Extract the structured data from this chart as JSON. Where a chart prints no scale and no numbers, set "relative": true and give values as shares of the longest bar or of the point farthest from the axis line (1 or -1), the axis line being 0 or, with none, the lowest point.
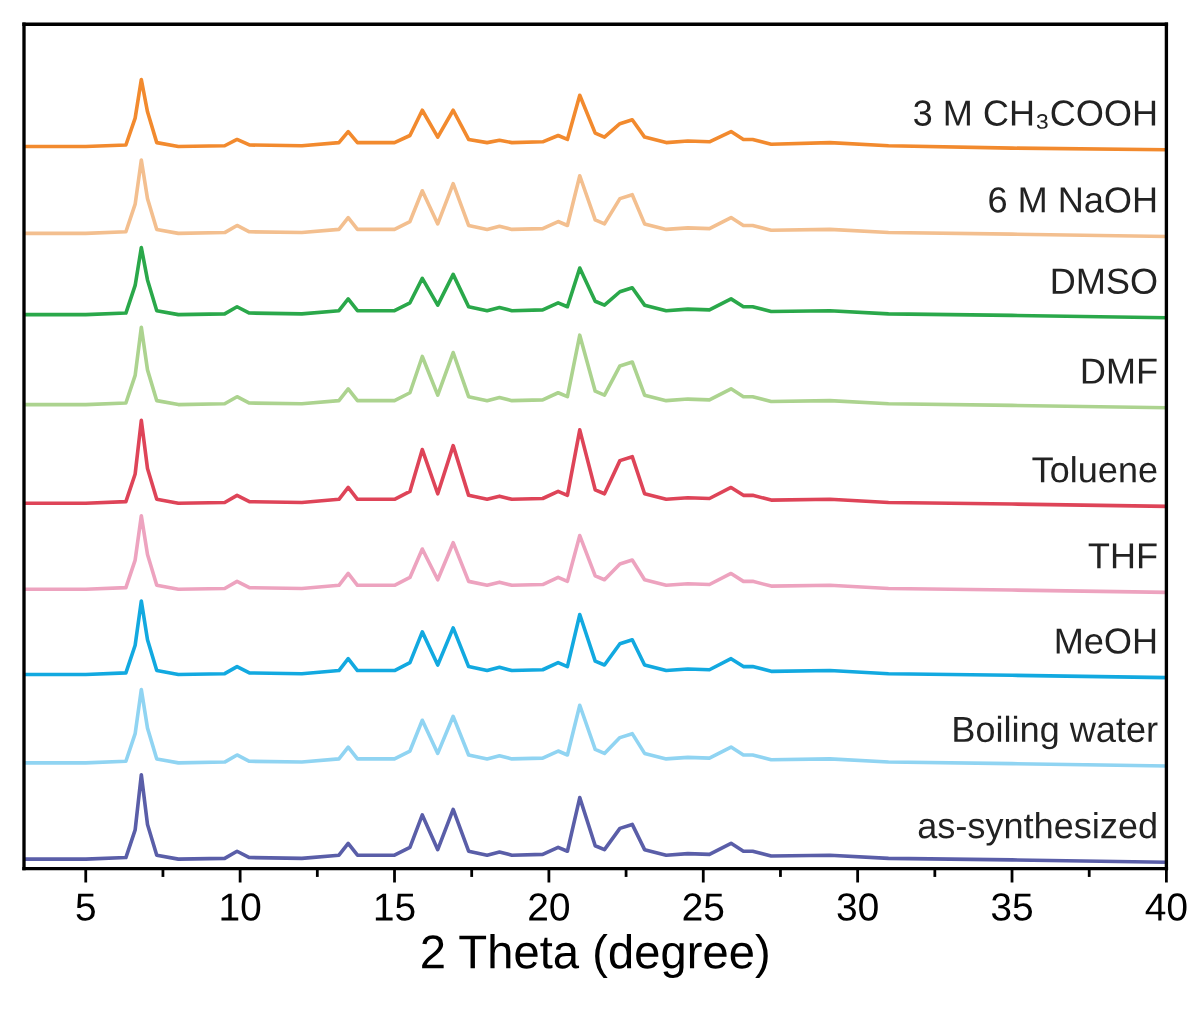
{
  "chart_data": {
    "type": "line",
    "relative": true,
    "xlabel": "2 Theta (degree)",
    "xlim": [
      3,
      40
    ],
    "xticks": [
      5,
      10,
      15,
      20,
      25,
      30,
      35,
      40
    ],
    "grid": false,
    "legend": false,
    "marker": "none",
    "line_style": "solid",
    "x": [
      3,
      5,
      6.3,
      6.6,
      6.8,
      7.0,
      7.3,
      8,
      9.5,
      9.9,
      10.3,
      12,
      13.2,
      13.5,
      13.8,
      15,
      15.5,
      15.9,
      16.4,
      16.9,
      17.4,
      18.0,
      18.4,
      18.8,
      19.8,
      20.3,
      20.6,
      21.0,
      21.5,
      21.8,
      22.3,
      22.7,
      23.1,
      23.8,
      24.5,
      25.2,
      25.9,
      26.3,
      26.6,
      27.2,
      29.1,
      31,
      35,
      40
    ],
    "series": [
      {
        "name": "3 M CH₃COOH",
        "color": "#f28a2e",
        "values": [
          0.915,
          0.915,
          0.917,
          0.951,
          1,
          0.959,
          0.92,
          0.915,
          0.916,
          0.924,
          0.917,
          0.916,
          0.92,
          0.934,
          0.92,
          0.92,
          0.929,
          0.961,
          0.927,
          0.961,
          0.924,
          0.92,
          0.923,
          0.92,
          0.921,
          0.929,
          0.924,
          0.98,
          0.932,
          0.927,
          0.944,
          0.949,
          0.927,
          0.92,
          0.922,
          0.921,
          0.934,
          0.924,
          0.924,
          0.918,
          0.92,
          0.916,
          0.913,
          0.911
        ]
      },
      {
        "name": "6 M NaOH",
        "color": "#f3bf8f",
        "values": [
          0.805,
          0.805,
          0.807,
          0.842,
          0.898,
          0.849,
          0.81,
          0.805,
          0.806,
          0.815,
          0.807,
          0.806,
          0.81,
          0.825,
          0.81,
          0.81,
          0.82,
          0.859,
          0.817,
          0.868,
          0.815,
          0.81,
          0.814,
          0.81,
          0.811,
          0.82,
          0.815,
          0.878,
          0.822,
          0.817,
          0.849,
          0.854,
          0.817,
          0.81,
          0.812,
          0.811,
          0.825,
          0.815,
          0.815,
          0.809,
          0.81,
          0.806,
          0.804,
          0.801
        ]
      },
      {
        "name": "DMSO",
        "color": "#2aa84a",
        "values": [
          0.702,
          0.702,
          0.704,
          0.739,
          0.787,
          0.746,
          0.707,
          0.702,
          0.703,
          0.712,
          0.704,
          0.703,
          0.707,
          0.722,
          0.707,
          0.707,
          0.717,
          0.748,
          0.714,
          0.753,
          0.712,
          0.707,
          0.711,
          0.707,
          0.708,
          0.717,
          0.712,
          0.761,
          0.719,
          0.714,
          0.731,
          0.736,
          0.714,
          0.707,
          0.709,
          0.708,
          0.722,
          0.712,
          0.712,
          0.706,
          0.707,
          0.703,
          0.701,
          0.698
        ]
      },
      {
        "name": "DMF",
        "color": "#acd38f",
        "values": [
          0.588,
          0.588,
          0.59,
          0.625,
          0.686,
          0.632,
          0.593,
          0.588,
          0.589,
          0.598,
          0.59,
          0.589,
          0.593,
          0.608,
          0.593,
          0.593,
          0.603,
          0.649,
          0.6,
          0.654,
          0.598,
          0.593,
          0.597,
          0.593,
          0.594,
          0.603,
          0.598,
          0.676,
          0.605,
          0.6,
          0.637,
          0.642,
          0.6,
          0.593,
          0.595,
          0.594,
          0.608,
          0.598,
          0.598,
          0.592,
          0.593,
          0.589,
          0.587,
          0.584
        ]
      },
      {
        "name": "Toluene",
        "color": "#de4458",
        "values": [
          0.463,
          0.463,
          0.465,
          0.5,
          0.568,
          0.507,
          0.468,
          0.463,
          0.464,
          0.473,
          0.465,
          0.464,
          0.468,
          0.483,
          0.468,
          0.468,
          0.478,
          0.531,
          0.475,
          0.536,
          0.473,
          0.468,
          0.472,
          0.468,
          0.469,
          0.478,
          0.473,
          0.556,
          0.48,
          0.475,
          0.517,
          0.522,
          0.475,
          0.468,
          0.47,
          0.469,
          0.483,
          0.473,
          0.473,
          0.467,
          0.468,
          0.464,
          0.462,
          0.459
        ]
      },
      {
        "name": "THF",
        "color": "#eda3bf",
        "values": [
          0.354,
          0.354,
          0.356,
          0.391,
          0.447,
          0.398,
          0.359,
          0.354,
          0.355,
          0.364,
          0.356,
          0.355,
          0.359,
          0.374,
          0.359,
          0.359,
          0.369,
          0.405,
          0.366,
          0.413,
          0.364,
          0.359,
          0.363,
          0.359,
          0.36,
          0.369,
          0.364,
          0.422,
          0.371,
          0.366,
          0.386,
          0.391,
          0.366,
          0.359,
          0.361,
          0.36,
          0.374,
          0.364,
          0.364,
          0.358,
          0.359,
          0.355,
          0.353,
          0.35
        ]
      },
      {
        "name": "MeOH",
        "color": "#12a9e0",
        "values": [
          0.246,
          0.246,
          0.248,
          0.283,
          0.339,
          0.29,
          0.251,
          0.246,
          0.247,
          0.256,
          0.248,
          0.247,
          0.251,
          0.266,
          0.251,
          0.251,
          0.261,
          0.3,
          0.258,
          0.305,
          0.256,
          0.251,
          0.255,
          0.251,
          0.252,
          0.261,
          0.256,
          0.322,
          0.263,
          0.258,
          0.285,
          0.29,
          0.258,
          0.251,
          0.253,
          0.252,
          0.266,
          0.256,
          0.256,
          0.25,
          0.251,
          0.247,
          0.245,
          0.242
        ]
      },
      {
        "name": "Boiling water",
        "color": "#90d4f2",
        "values": [
          0.134,
          0.134,
          0.136,
          0.171,
          0.227,
          0.178,
          0.139,
          0.134,
          0.135,
          0.144,
          0.136,
          0.135,
          0.139,
          0.154,
          0.139,
          0.139,
          0.149,
          0.188,
          0.146,
          0.193,
          0.144,
          0.139,
          0.143,
          0.139,
          0.14,
          0.149,
          0.144,
          0.207,
          0.151,
          0.146,
          0.166,
          0.171,
          0.146,
          0.139,
          0.141,
          0.14,
          0.154,
          0.144,
          0.144,
          0.138,
          0.139,
          0.135,
          0.133,
          0.13
        ]
      },
      {
        "name": "as-synthesized",
        "color": "#5a5ea8",
        "values": [
          0.012,
          0.012,
          0.014,
          0.049,
          0.119,
          0.056,
          0.017,
          0.012,
          0.013,
          0.022,
          0.014,
          0.013,
          0.017,
          0.032,
          0.017,
          0.017,
          0.027,
          0.068,
          0.024,
          0.075,
          0.022,
          0.017,
          0.021,
          0.017,
          0.018,
          0.027,
          0.022,
          0.09,
          0.029,
          0.024,
          0.051,
          0.056,
          0.024,
          0.017,
          0.019,
          0.018,
          0.032,
          0.022,
          0.022,
          0.016,
          0.017,
          0.013,
          0.011,
          0.008
        ]
      }
    ]
  }
}
